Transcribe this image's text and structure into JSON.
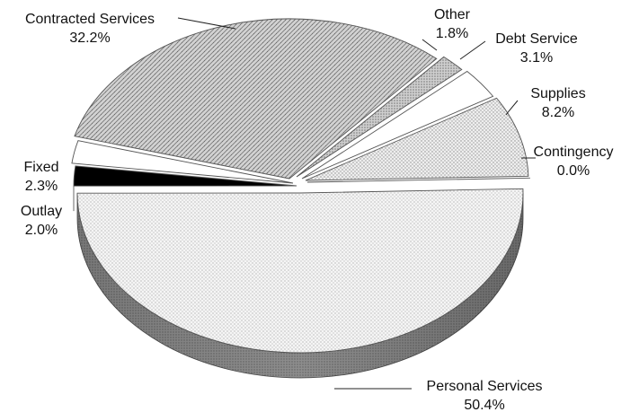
{
  "chart_data": {
    "type": "pie",
    "style": "3d-exploded-perspective",
    "title": "",
    "slices": [
      {
        "label": "Personal Services",
        "value": 50.4,
        "value_text": "50.4%",
        "fill": "#ededed",
        "pattern": "dots-fine"
      },
      {
        "label": "Outlay",
        "value": 2.0,
        "value_text": "2.0%",
        "fill": "#000000",
        "pattern": "solid"
      },
      {
        "label": "Fixed",
        "value": 2.3,
        "value_text": "2.3%",
        "fill": "#ffffff",
        "pattern": "solid"
      },
      {
        "label": "Contracted Services",
        "value": 32.2,
        "value_text": "32.2%",
        "fill": "#c9c9c9",
        "pattern": "diagonal-hatch"
      },
      {
        "label": "Other",
        "value": 1.8,
        "value_text": "1.8%",
        "fill": "#d6d6d6",
        "pattern": "dense-dots"
      },
      {
        "label": "Debt Service",
        "value": 3.1,
        "value_text": "3.1%",
        "fill": "#ffffff",
        "pattern": "solid"
      },
      {
        "label": "Supplies",
        "value": 8.2,
        "value_text": "8.2%",
        "fill": "#e6e6e6",
        "pattern": "dots-medium"
      },
      {
        "label": "Contingency",
        "value": 0.0,
        "value_text": "0.0%",
        "fill": "#ffffff",
        "pattern": "solid"
      }
    ],
    "legend": "none",
    "data_labels": "outside-with-leader-lines"
  }
}
